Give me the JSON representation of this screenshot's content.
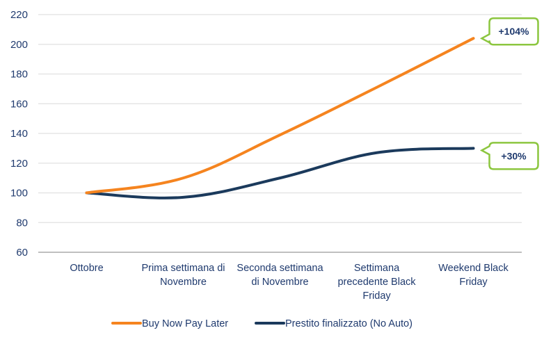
{
  "chart_data": {
    "type": "line",
    "title": "",
    "xlabel": "",
    "ylabel": "",
    "ylim": [
      60,
      220
    ],
    "yticks": [
      "220",
      "200",
      "180",
      "160",
      "140",
      "120",
      "100",
      "80",
      "60"
    ],
    "ytick_values": [
      220,
      200,
      180,
      160,
      140,
      120,
      100,
      80,
      60
    ],
    "grid": true,
    "legend_position": "bottom",
    "categories": [
      [
        "Ottobre"
      ],
      [
        "Prima settimana di",
        "Novembre"
      ],
      [
        "Seconda settimana",
        "di Novembre"
      ],
      [
        "Settimana",
        "precedente Black",
        "Friday"
      ],
      [
        "Weekend Black",
        "Friday"
      ]
    ],
    "series": [
      {
        "name": "Buy Now Pay Later",
        "color": "#f5841f",
        "values": [
          100,
          110,
          139,
          171,
          204
        ]
      },
      {
        "name": "Prestito finalizzato (No Auto)",
        "color": "#1b3a5c",
        "values": [
          100,
          97,
          110,
          127,
          130
        ]
      }
    ],
    "annotations": [
      {
        "text": "+104%",
        "series": 0,
        "point": 4
      },
      {
        "text": "+30%",
        "series": 1,
        "point": 4
      }
    ],
    "callout_border_color": "#8cc63f"
  }
}
